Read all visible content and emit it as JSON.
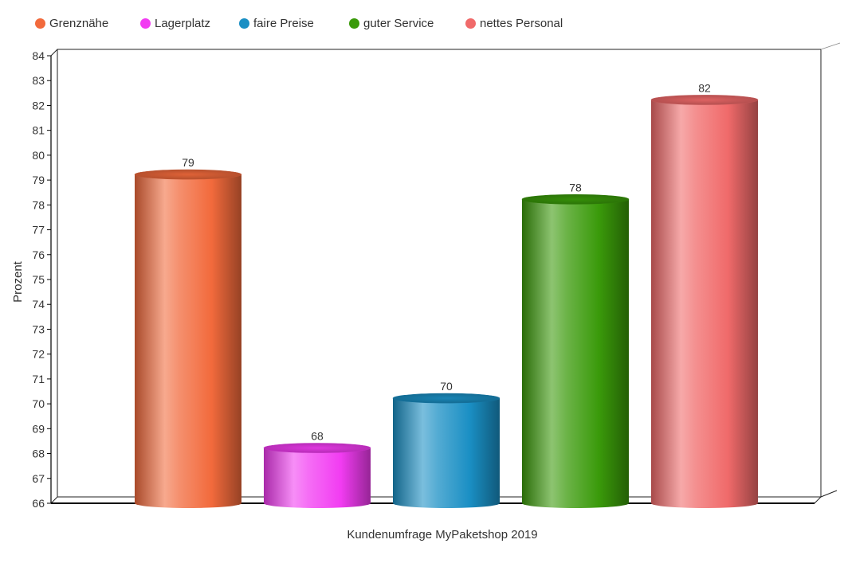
{
  "chart_data": {
    "type": "bar",
    "categories": [
      "Grenznähe",
      "Lagerplatz",
      "faire Preise",
      "guter Service",
      "nettes Personal"
    ],
    "values": [
      79,
      68,
      70,
      78,
      82
    ],
    "colors": [
      "#f26a3c",
      "#f23cf2",
      "#1a8fc4",
      "#3a9a0a",
      "#f06a6a"
    ],
    "title": "",
    "xlabel": "Kundenumfrage MyPaketshop 2019",
    "ylabel": "Prozent",
    "ylim": [
      66,
      84
    ],
    "yticks": [
      66,
      67,
      68,
      69,
      70,
      71,
      72,
      73,
      74,
      75,
      76,
      77,
      78,
      79,
      80,
      81,
      82,
      83,
      84
    ],
    "legend_position": "top-left",
    "style": "3d-cylinder",
    "grid": false
  }
}
